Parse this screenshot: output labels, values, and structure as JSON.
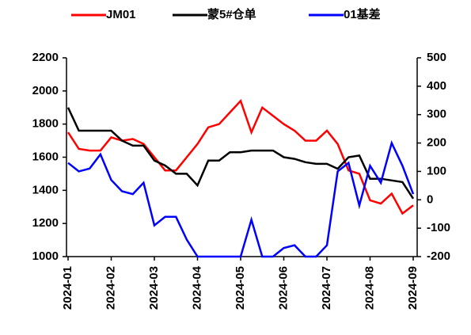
{
  "chart_data": {
    "type": "line",
    "categories": [
      "2024-01",
      null,
      null,
      null,
      "2024-02",
      null,
      null,
      null,
      "2024-03",
      null,
      null,
      null,
      "2024-04",
      null,
      null,
      null,
      "2024-05",
      null,
      null,
      null,
      "2024-06",
      null,
      null,
      null,
      "2024-07",
      null,
      null,
      null,
      "2024-08",
      null,
      null,
      null,
      "2024-09"
    ],
    "series": [
      {
        "name": "JM01",
        "color": "#ff0000",
        "values": [
          1750,
          1650,
          1640,
          1640,
          1720,
          1700,
          1710,
          1680,
          1600,
          1520,
          1520,
          1600,
          1680,
          1780,
          1800,
          1870,
          1940,
          1750,
          1900,
          1850,
          1800,
          1760,
          1700,
          1700,
          1760,
          1680,
          1520,
          1500,
          1340,
          1320,
          1380,
          1260,
          1310
        ]
      },
      {
        "name": "蒙5#仓单",
        "color": "#000000",
        "values": [
          1900,
          1760,
          1760,
          1760,
          1760,
          1700,
          1670,
          1670,
          1580,
          1550,
          1500,
          1500,
          1430,
          1580,
          1580,
          1630,
          1630,
          1640,
          1640,
          1640,
          1600,
          1590,
          1570,
          1560,
          1560,
          1530,
          1600,
          1610,
          1470,
          1470,
          1460,
          1450,
          1350
        ]
      },
      {
        "name": "01基差",
        "color": "#0000ff",
        "axis": "y2",
        "values": [
          130,
          100,
          110,
          160,
          70,
          30,
          20,
          60,
          -90,
          -60,
          -60,
          -140,
          -200,
          -200,
          -200,
          -200,
          -200,
          -70,
          -200,
          -200,
          -170,
          -160,
          -200,
          -200,
          -160,
          100,
          130,
          -20,
          120,
          60,
          200,
          120,
          20
        ]
      }
    ],
    "ylim": [
      1000,
      2200
    ],
    "yticks": [
      1000,
      1200,
      1400,
      1600,
      1800,
      2000,
      2200
    ],
    "y2lim": [
      -200,
      500
    ],
    "y2ticks": [
      -200,
      -100,
      0,
      100,
      200,
      300,
      400,
      500
    ],
    "legend": "top"
  }
}
